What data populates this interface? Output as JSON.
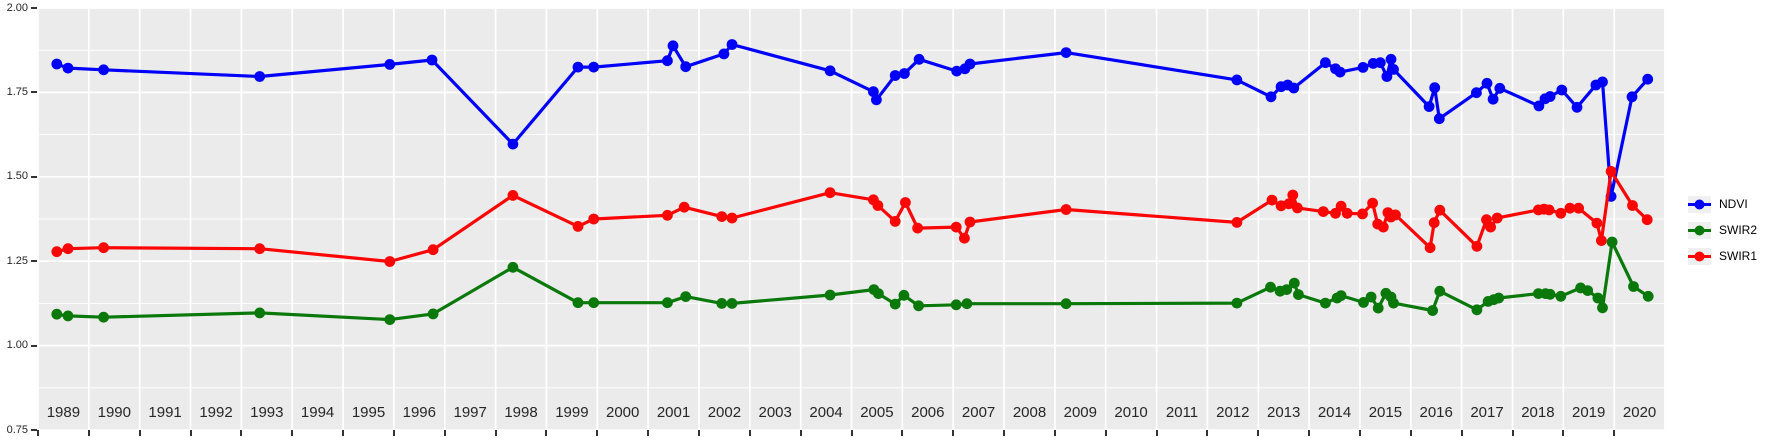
{
  "figure": {
    "background": "#FFFFFF",
    "panel_background": "#EBEBEB",
    "grid_color": "#FFFFFF",
    "axis_text_color": "#262626",
    "tick_color": "#333333"
  },
  "legend": {
    "position": "right",
    "key_background": "#F0F0F0",
    "items": [
      {
        "label": "NDVI",
        "color": "#0000FA"
      },
      {
        "label": "SWIR2",
        "color": "#0A780A"
      },
      {
        "label": "SWIR1",
        "color": "#FB0505"
      }
    ]
  },
  "chart_data": {
    "type": "line",
    "title": "",
    "xlabel": "",
    "ylabel": "",
    "grid": true,
    "legend_position": "right",
    "marker": "point",
    "x_range": [
      1989,
      2021
    ],
    "y_range": [
      0.75,
      2.0
    ],
    "x_tick_labels": [
      "1989",
      "1990",
      "1991",
      "1992",
      "1993",
      "1994",
      "1995",
      "1996",
      "1997",
      "1998",
      "1999",
      "2000",
      "2001",
      "2002",
      "2003",
      "2004",
      "2005",
      "2006",
      "2007",
      "2008",
      "2009",
      "2010",
      "2011",
      "2012",
      "2013",
      "2014",
      "2015",
      "2016",
      "2017",
      "2018",
      "2019",
      "2020"
    ],
    "y_tick_labels": [
      "0.75",
      "1.00",
      "1.25",
      "1.50",
      "1.75",
      "2.00"
    ],
    "series": [
      {
        "name": "NDVI",
        "color": "#0000FA",
        "points": [
          [
            1989.37,
            1.834
          ],
          [
            1989.59,
            1.822
          ],
          [
            1990.29,
            1.817
          ],
          [
            1993.36,
            1.797
          ],
          [
            1995.92,
            1.833
          ],
          [
            1996.75,
            1.846
          ],
          [
            1998.34,
            1.597
          ],
          [
            1999.62,
            1.825
          ],
          [
            1999.93,
            1.825
          ],
          [
            2001.38,
            1.844
          ],
          [
            2001.49,
            1.888
          ],
          [
            2001.74,
            1.826
          ],
          [
            2002.49,
            1.864
          ],
          [
            2002.65,
            1.892
          ],
          [
            2004.58,
            1.814
          ],
          [
            2005.43,
            1.752
          ],
          [
            2005.49,
            1.728
          ],
          [
            2005.86,
            1.8
          ],
          [
            2006.04,
            1.806
          ],
          [
            2006.33,
            1.848
          ],
          [
            2007.07,
            1.813
          ],
          [
            2007.23,
            1.82
          ],
          [
            2007.33,
            1.834
          ],
          [
            2009.22,
            1.868
          ],
          [
            2012.58,
            1.787
          ],
          [
            2013.25,
            1.737
          ],
          [
            2013.45,
            1.767
          ],
          [
            2013.58,
            1.772
          ],
          [
            2013.7,
            1.763
          ],
          [
            2014.32,
            1.838
          ],
          [
            2014.52,
            1.82
          ],
          [
            2014.61,
            1.81
          ],
          [
            2015.06,
            1.824
          ],
          [
            2015.26,
            1.836
          ],
          [
            2015.4,
            1.838
          ],
          [
            2015.53,
            1.797
          ],
          [
            2015.61,
            1.848
          ],
          [
            2015.66,
            1.818
          ],
          [
            2016.36,
            1.708
          ],
          [
            2016.47,
            1.764
          ],
          [
            2016.56,
            1.672
          ],
          [
            2017.29,
            1.749
          ],
          [
            2017.5,
            1.777
          ],
          [
            2017.62,
            1.73
          ],
          [
            2017.75,
            1.762
          ],
          [
            2018.52,
            1.71
          ],
          [
            2018.64,
            1.731
          ],
          [
            2018.74,
            1.738
          ],
          [
            2018.97,
            1.757
          ],
          [
            2019.27,
            1.706
          ],
          [
            2019.64,
            1.772
          ],
          [
            2019.77,
            1.781
          ],
          [
            2019.94,
            1.442
          ],
          [
            2020.35,
            1.737
          ],
          [
            2020.66,
            1.789
          ]
        ]
      },
      {
        "name": "SWIR2",
        "color": "#0A780A",
        "points": [
          [
            1989.37,
            1.093
          ],
          [
            1989.59,
            1.088
          ],
          [
            1990.29,
            1.084
          ],
          [
            1993.36,
            1.097
          ],
          [
            1995.92,
            1.077
          ],
          [
            1996.77,
            1.094
          ],
          [
            1998.34,
            1.232
          ],
          [
            1999.62,
            1.127
          ],
          [
            1999.93,
            1.127
          ],
          [
            2001.38,
            1.127
          ],
          [
            2001.74,
            1.145
          ],
          [
            2002.45,
            1.125
          ],
          [
            2002.65,
            1.125
          ],
          [
            2004.58,
            1.15
          ],
          [
            2005.44,
            1.166
          ],
          [
            2005.53,
            1.154
          ],
          [
            2005.86,
            1.123
          ],
          [
            2006.03,
            1.149
          ],
          [
            2006.32,
            1.118
          ],
          [
            2007.06,
            1.121
          ],
          [
            2007.27,
            1.124
          ],
          [
            2009.22,
            1.124
          ],
          [
            2012.58,
            1.126
          ],
          [
            2013.24,
            1.173
          ],
          [
            2013.43,
            1.161
          ],
          [
            2013.56,
            1.166
          ],
          [
            2013.71,
            1.185
          ],
          [
            2013.79,
            1.151
          ],
          [
            2014.32,
            1.126
          ],
          [
            2014.55,
            1.141
          ],
          [
            2014.63,
            1.148
          ],
          [
            2015.07,
            1.128
          ],
          [
            2015.22,
            1.144
          ],
          [
            2015.36,
            1.111
          ],
          [
            2015.51,
            1.155
          ],
          [
            2015.61,
            1.144
          ],
          [
            2015.66,
            1.126
          ],
          [
            2016.43,
            1.104
          ],
          [
            2016.57,
            1.161
          ],
          [
            2017.3,
            1.106
          ],
          [
            2017.52,
            1.131
          ],
          [
            2017.63,
            1.136
          ],
          [
            2017.73,
            1.141
          ],
          [
            2018.51,
            1.154
          ],
          [
            2018.65,
            1.154
          ],
          [
            2018.74,
            1.152
          ],
          [
            2018.95,
            1.146
          ],
          [
            2019.34,
            1.171
          ],
          [
            2019.48,
            1.163
          ],
          [
            2019.68,
            1.141
          ],
          [
            2019.77,
            1.112
          ],
          [
            2019.96,
            1.307
          ],
          [
            2020.38,
            1.175
          ],
          [
            2020.67,
            1.146
          ]
        ]
      },
      {
        "name": "SWIR1",
        "color": "#FB0505",
        "points": [
          [
            1989.37,
            1.278
          ],
          [
            1989.59,
            1.287
          ],
          [
            1990.29,
            1.29
          ],
          [
            1993.36,
            1.287
          ],
          [
            1995.92,
            1.249
          ],
          [
            1996.77,
            1.284
          ],
          [
            1998.34,
            1.445
          ],
          [
            1999.62,
            1.353
          ],
          [
            1999.93,
            1.375
          ],
          [
            2001.38,
            1.386
          ],
          [
            2001.71,
            1.41
          ],
          [
            2002.45,
            1.382
          ],
          [
            2002.65,
            1.378
          ],
          [
            2004.58,
            1.453
          ],
          [
            2005.43,
            1.432
          ],
          [
            2005.52,
            1.415
          ],
          [
            2005.86,
            1.368
          ],
          [
            2006.06,
            1.424
          ],
          [
            2006.3,
            1.348
          ],
          [
            2007.06,
            1.351
          ],
          [
            2007.22,
            1.318
          ],
          [
            2007.33,
            1.366
          ],
          [
            2009.22,
            1.403
          ],
          [
            2012.58,
            1.365
          ],
          [
            2013.27,
            1.431
          ],
          [
            2013.45,
            1.414
          ],
          [
            2013.6,
            1.42
          ],
          [
            2013.68,
            1.446
          ],
          [
            2013.77,
            1.408
          ],
          [
            2014.28,
            1.397
          ],
          [
            2014.52,
            1.392
          ],
          [
            2014.63,
            1.413
          ],
          [
            2014.75,
            1.392
          ],
          [
            2015.05,
            1.39
          ],
          [
            2015.25,
            1.422
          ],
          [
            2015.35,
            1.36
          ],
          [
            2015.46,
            1.351
          ],
          [
            2015.55,
            1.394
          ],
          [
            2015.61,
            1.381
          ],
          [
            2015.7,
            1.387
          ],
          [
            2016.38,
            1.29
          ],
          [
            2016.46,
            1.364
          ],
          [
            2016.57,
            1.401
          ],
          [
            2017.3,
            1.294
          ],
          [
            2017.49,
            1.373
          ],
          [
            2017.57,
            1.351
          ],
          [
            2017.7,
            1.378
          ],
          [
            2018.51,
            1.402
          ],
          [
            2018.62,
            1.404
          ],
          [
            2018.72,
            1.402
          ],
          [
            2018.95,
            1.392
          ],
          [
            2019.13,
            1.407
          ],
          [
            2019.3,
            1.407
          ],
          [
            2019.66,
            1.363
          ],
          [
            2019.75,
            1.311
          ],
          [
            2019.94,
            1.516
          ],
          [
            2020.36,
            1.415
          ],
          [
            2020.65,
            1.373
          ]
        ]
      }
    ]
  }
}
